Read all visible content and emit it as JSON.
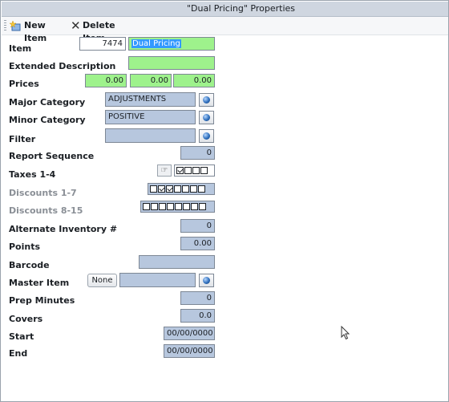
{
  "window": {
    "title": "\"Dual Pricing\" Properties"
  },
  "toolbar": {
    "new_item": "New Item",
    "delete_item": "Delete Item"
  },
  "fields": {
    "item": {
      "label": "Item",
      "number": "7474",
      "name": "Dual Pricing"
    },
    "extended_description": {
      "label": "Extended Description",
      "value": ""
    },
    "prices": {
      "label": "Prices",
      "values": [
        "0.00",
        "0.00",
        "0.00"
      ]
    },
    "major_category": {
      "label": "Major Category",
      "value": "ADJUSTMENTS"
    },
    "minor_category": {
      "label": "Minor Category",
      "value": "POSITIVE"
    },
    "filter": {
      "label": "Filter",
      "value": ""
    },
    "report_sequence": {
      "label": "Report Sequence",
      "value": "0"
    },
    "taxes": {
      "label": "Taxes 1-4",
      "checked": [
        true,
        false,
        false,
        false
      ]
    },
    "discounts_1_7": {
      "label": "Discounts 1-7",
      "checked": [
        false,
        true,
        true,
        false,
        false,
        false,
        false
      ]
    },
    "discounts_8_15": {
      "label": "Discounts 8-15",
      "checked": [
        false,
        false,
        false,
        false,
        false,
        false,
        false,
        false
      ]
    },
    "alternate_inventory": {
      "label": "Alternate Inventory #",
      "value": "0"
    },
    "points": {
      "label": "Points",
      "value": "0.00"
    },
    "barcode": {
      "label": "Barcode",
      "value": ""
    },
    "master_item": {
      "label": "Master Item",
      "button": "None",
      "value": ""
    },
    "prep_minutes": {
      "label": "Prep Minutes",
      "value": "0"
    },
    "covers": {
      "label": "Covers",
      "value": "0.0"
    },
    "start": {
      "label": "Start",
      "value": "00/00/0000"
    },
    "end": {
      "label": "End",
      "value": "00/00/0000"
    }
  },
  "colors": {
    "required_field": "#9ef28c",
    "readonly_field": "#b7c7de",
    "titlebar": "#cfd6e0"
  },
  "icons": {
    "new_item": "new-item-icon",
    "delete_item": "delete-x-icon",
    "lookup": "globe-icon",
    "tax_hand": "pointing-hand-icon"
  }
}
